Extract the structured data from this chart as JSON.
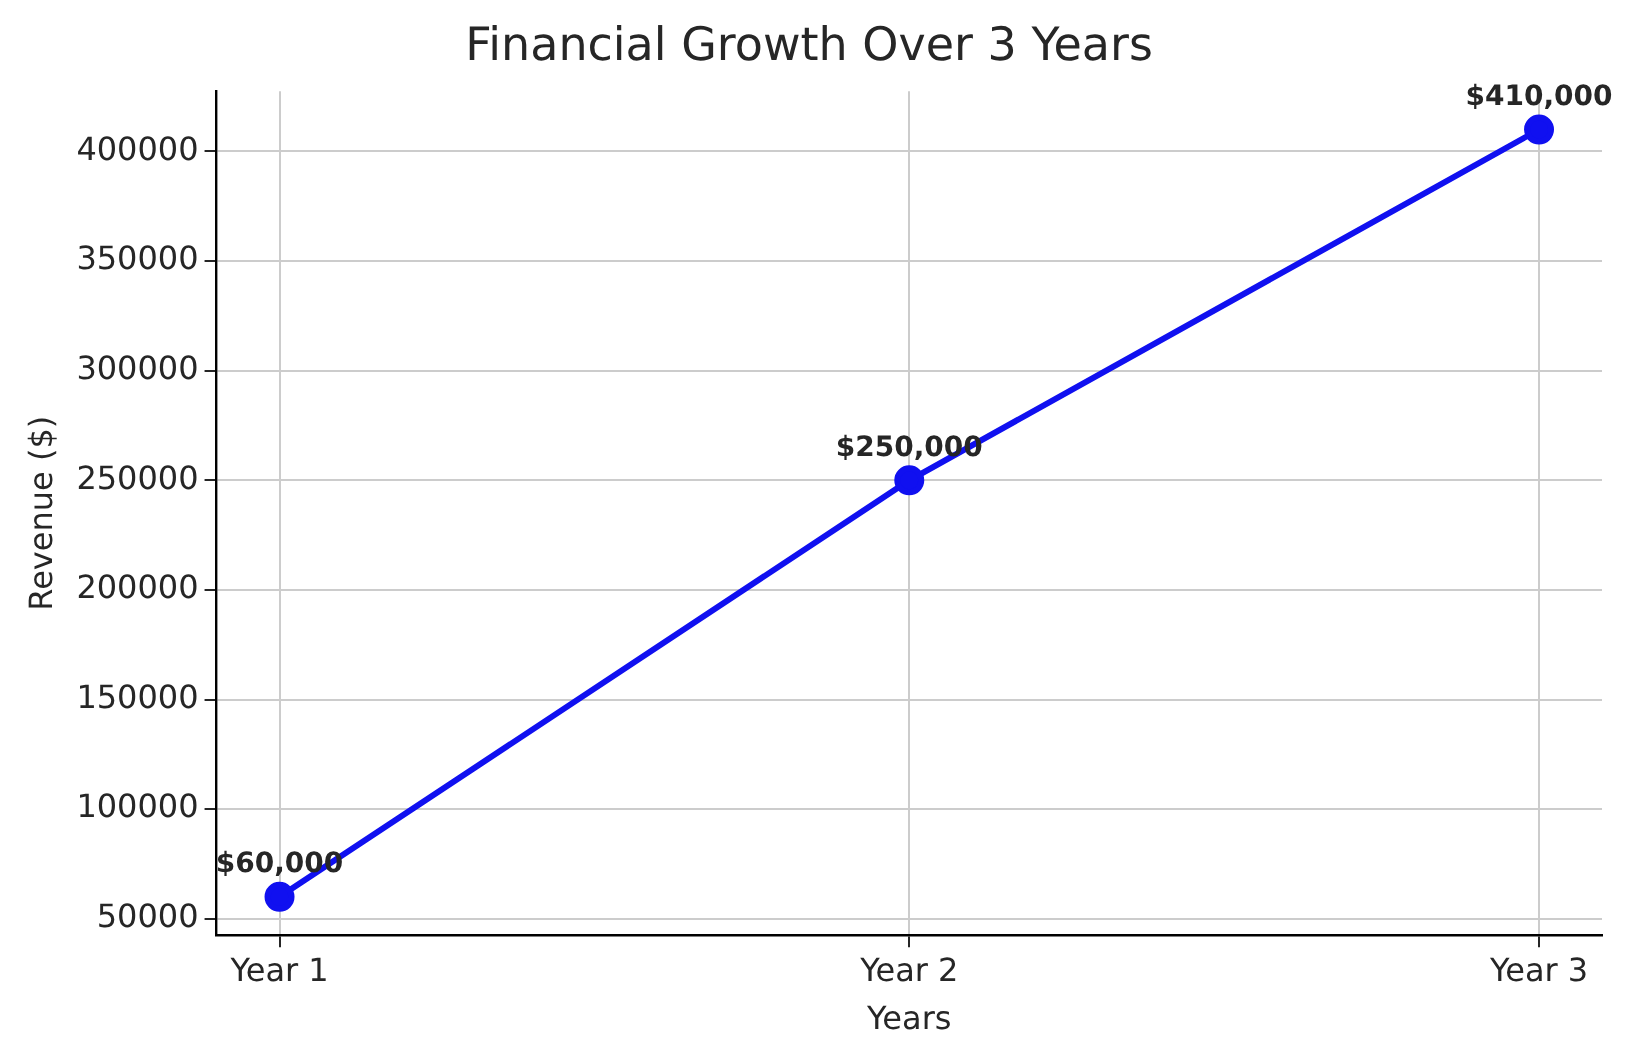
{
  "chart_data": {
    "type": "line",
    "title": "Financial Growth Over 3 Years",
    "xlabel": "Years",
    "ylabel": "Revenue ($)",
    "categories": [
      "Year 1",
      "Year 2",
      "Year 3"
    ],
    "series": [
      {
        "color": "#1010f0",
        "values": [
          60000,
          250000,
          410000
        ],
        "value_labels": [
          "$60,000",
          "$250,000",
          "$410,000"
        ]
      }
    ],
    "ylim": [
      42500,
      427500
    ],
    "yticks": [
      50000,
      100000,
      150000,
      200000,
      250000,
      300000,
      350000,
      400000
    ],
    "grid": true,
    "legend": false,
    "marker": "circle",
    "line_style": "solid"
  }
}
